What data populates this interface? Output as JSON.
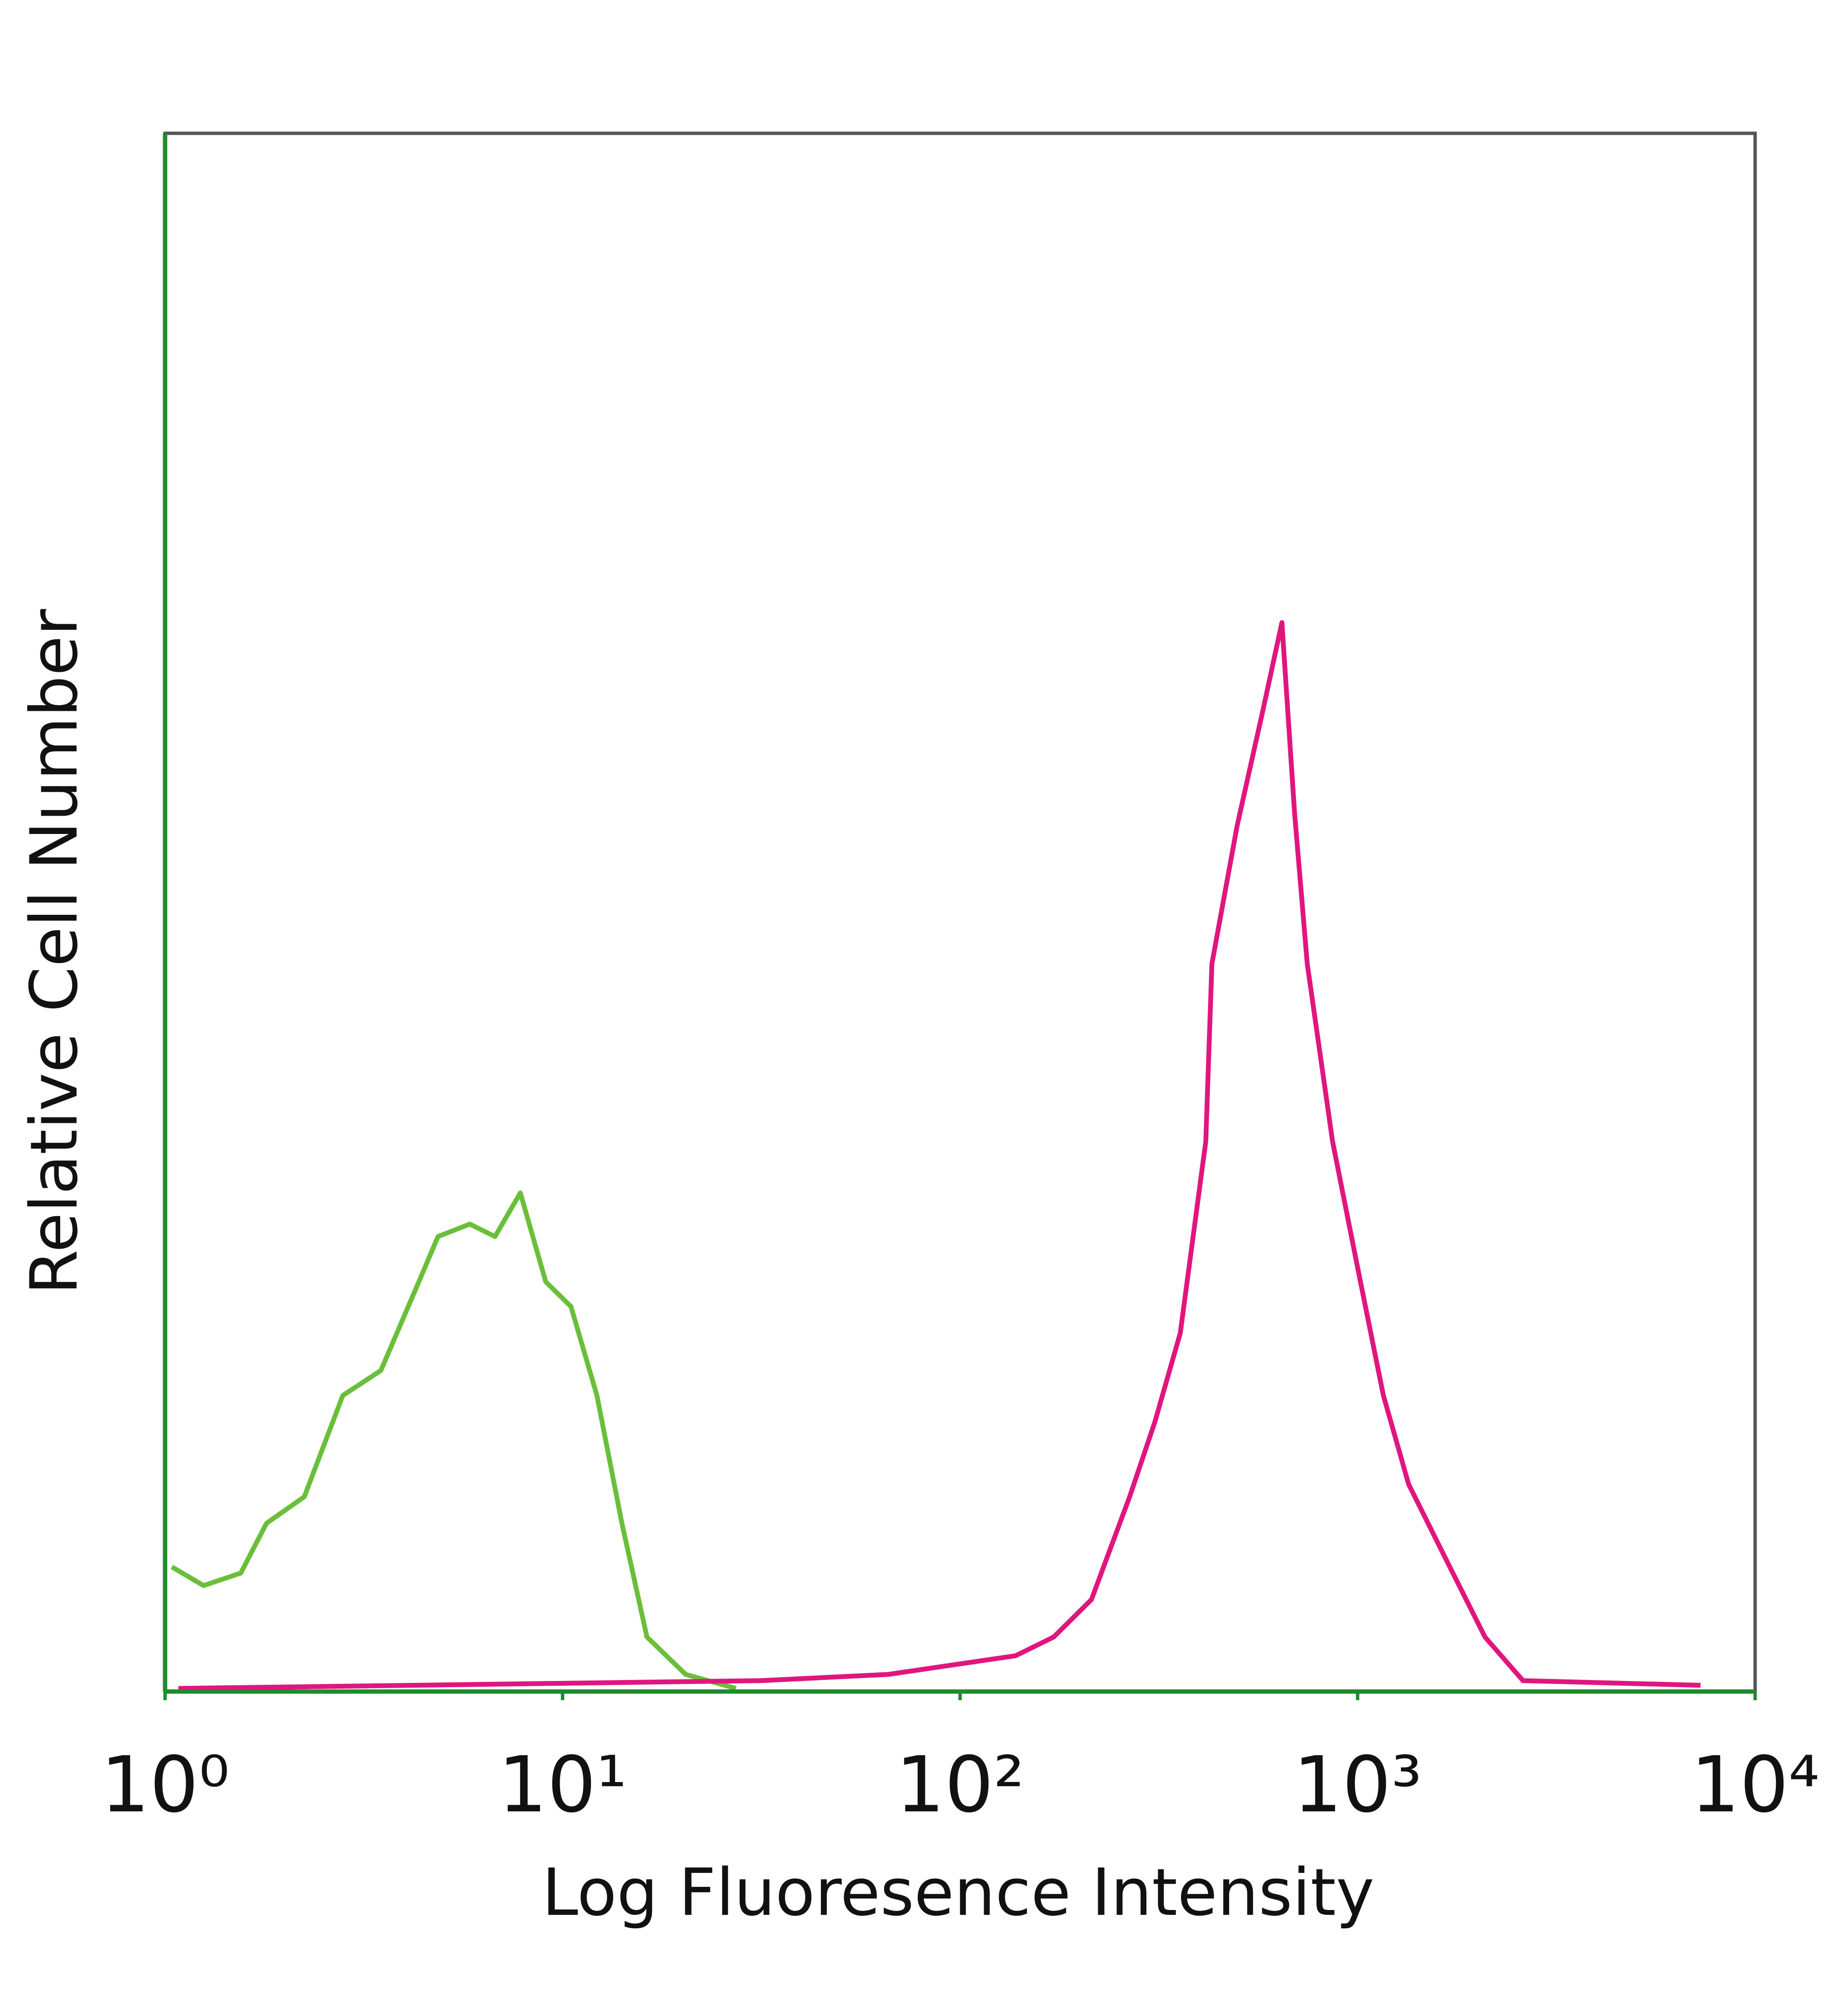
{
  "chart_data": {
    "type": "line",
    "x_label": "Log Fluoresence Intensity",
    "y_label": "Relative Cell Number",
    "xscale": "log",
    "xlim": [
      1,
      10000
    ],
    "xticks": [
      {
        "value": 1,
        "label": "10⁰"
      },
      {
        "value": 10,
        "label": "10¹"
      },
      {
        "value": 100,
        "label": "10²"
      },
      {
        "value": 1000,
        "label": "10³"
      },
      {
        "value": 10000,
        "label": "10⁴"
      }
    ],
    "ylim": [
      0,
      100
    ],
    "axis_color": "#1f8a2e",
    "frame_color": "#555555",
    "series": [
      {
        "color": "#6abf3a",
        "x": [
          1.04,
          1.25,
          1.55,
          1.8,
          2.24,
          2.8,
          3.49,
          4.35,
          4.86,
          5.84,
          6.76,
          7.83,
          9.07,
          10.5,
          12.2,
          14.1,
          16.3,
          20.4,
          27.3
        ],
        "values": [
          8.0,
          6.8,
          7.6,
          10.8,
          12.5,
          19.0,
          20.6,
          26.3,
          29.2,
          30.0,
          29.2,
          32.0,
          26.3,
          24.7,
          19.0,
          10.8,
          3.5,
          1.1,
          0.2
        ]
      },
      {
        "color": "#e0167f",
        "x": [
          1.08,
          31.6,
          66,
          138,
          172,
          214,
          267,
          309,
          358,
          415,
          430,
          498,
          577,
          645,
          694,
          747,
          865,
          1002,
          1161,
          1344,
          1675,
          2091,
          2606,
          7290
        ],
        "values": [
          0.2,
          0.7,
          1.1,
          2.3,
          3.5,
          5.9,
          12.5,
          17.3,
          23.0,
          35.3,
          46.7,
          55.6,
          62.9,
          68.6,
          56.4,
          46.7,
          35.3,
          27.1,
          19.0,
          13.3,
          8.4,
          3.5,
          0.7,
          0.4
        ]
      }
    ]
  }
}
